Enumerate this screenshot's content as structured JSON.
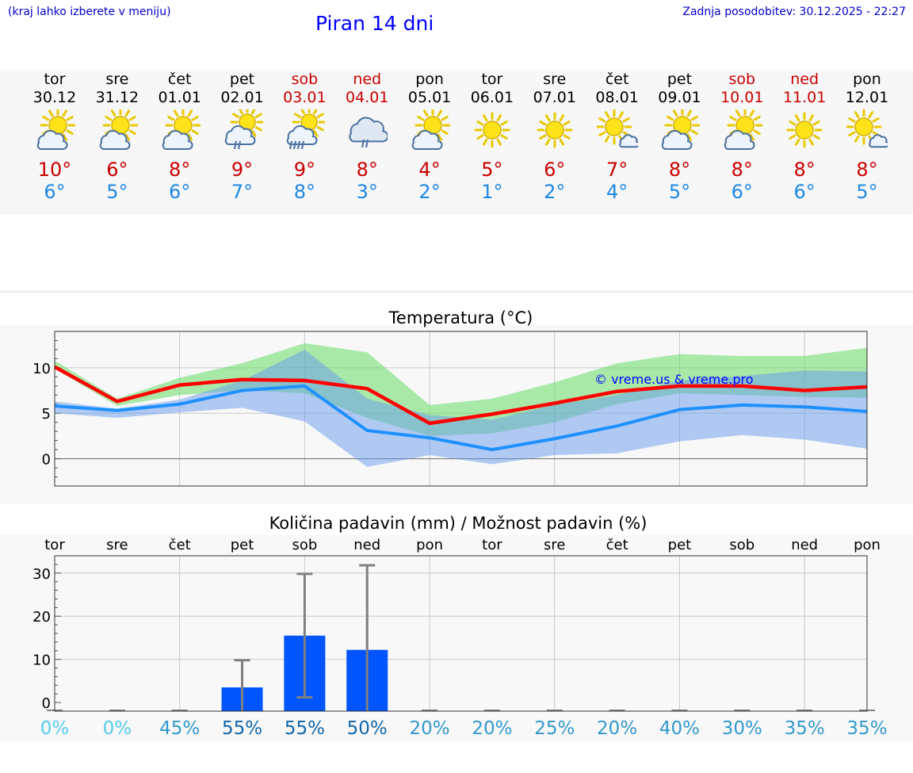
{
  "header": {
    "note": "(kraj lahko izberete v meniju)",
    "title": "Piran 14 dni",
    "updated": "Zadnja posodobitev: 30.12.2025 - 22:27"
  },
  "days": [
    {
      "name": "tor",
      "date": "30.12",
      "icon": "sun-cloud-icon",
      "max": "10°",
      "min": "6°",
      "weekend": false
    },
    {
      "name": "sre",
      "date": "31.12",
      "icon": "sun-cloud-icon",
      "max": "6°",
      "min": "5°",
      "weekend": false
    },
    {
      "name": "čet",
      "date": "01.01",
      "icon": "sun-cloud-icon",
      "max": "8°",
      "min": "6°",
      "weekend": false
    },
    {
      "name": "pet",
      "date": "02.01",
      "icon": "sun-cloud-rain-icon",
      "max": "9°",
      "min": "7°",
      "weekend": false
    },
    {
      "name": "sob",
      "date": "03.01",
      "icon": "sun-cloud-heavy-rain-icon",
      "max": "9°",
      "min": "8°",
      "weekend": true
    },
    {
      "name": "ned",
      "date": "04.01",
      "icon": "cloud-rain-icon",
      "max": "8°",
      "min": "3°",
      "weekend": true
    },
    {
      "name": "pon",
      "date": "05.01",
      "icon": "sun-cloud-icon",
      "max": "4°",
      "min": "2°",
      "weekend": false
    },
    {
      "name": "tor",
      "date": "06.01",
      "icon": "sun-icon",
      "max": "5°",
      "min": "1°",
      "weekend": false
    },
    {
      "name": "sre",
      "date": "07.01",
      "icon": "sun-icon",
      "max": "6°",
      "min": "2°",
      "weekend": false
    },
    {
      "name": "čet",
      "date": "08.01",
      "icon": "sun-small-cloud-icon",
      "max": "7°",
      "min": "4°",
      "weekend": false
    },
    {
      "name": "pet",
      "date": "09.01",
      "icon": "sun-cloud-icon",
      "max": "8°",
      "min": "5°",
      "weekend": false
    },
    {
      "name": "sob",
      "date": "10.01",
      "icon": "sun-cloud-icon",
      "max": "8°",
      "min": "6°",
      "weekend": true
    },
    {
      "name": "ned",
      "date": "11.01",
      "icon": "sun-icon",
      "max": "8°",
      "min": "6°",
      "weekend": true
    },
    {
      "name": "pon",
      "date": "12.01",
      "icon": "sun-small-cloud-icon",
      "max": "8°",
      "min": "5°",
      "weekend": false
    }
  ],
  "colors": {
    "max_line": "#ff0000",
    "min_line": "#1e90ff",
    "max_band": "#66dd66",
    "min_band": "#6699ee",
    "bar": "#0055ff",
    "errorbar": "#808080",
    "weekend": "#cc0000",
    "prob_low": "#55ccee",
    "prob_mid": "#3399cc",
    "prob_high": "#1166aa"
  },
  "chart_data": [
    {
      "type": "line",
      "title": "Temperatura (°C)",
      "x": [
        0,
        1,
        2,
        3,
        4,
        5,
        6,
        7,
        8,
        9,
        10,
        11,
        12,
        13
      ],
      "ylim": [
        -3,
        14
      ],
      "yticks": [
        0,
        5,
        10
      ],
      "watermark": "© vreme.us & vreme.pro",
      "series": [
        {
          "name": "max",
          "values": [
            10.1,
            6.3,
            8.1,
            8.7,
            8.6,
            7.7,
            3.9,
            4.9,
            6.1,
            7.4,
            8.0,
            8.0,
            7.5,
            7.9
          ]
        },
        {
          "name": "min",
          "values": [
            5.8,
            5.3,
            6.0,
            7.5,
            8.0,
            3.1,
            2.3,
            1.0,
            2.2,
            3.6,
            5.4,
            5.9,
            5.7,
            5.2
          ]
        }
      ],
      "bands": [
        {
          "name": "max_range",
          "upper": [
            10.8,
            6.6,
            8.9,
            10.5,
            12.7,
            11.7,
            5.9,
            6.6,
            8.4,
            10.5,
            11.5,
            11.3,
            11.3,
            12.2
          ],
          "lower": [
            9.9,
            5.8,
            7.0,
            7.5,
            7.2,
            4.5,
            2.5,
            2.8,
            4.0,
            6.0,
            7.2,
            7.0,
            6.8,
            6.7
          ]
        },
        {
          "name": "min_range",
          "upper": [
            6.3,
            5.5,
            6.5,
            8.6,
            12.0,
            6.6,
            4.8,
            4.3,
            5.9,
            7.0,
            8.6,
            9.1,
            9.7,
            9.6
          ],
          "lower": [
            5.0,
            4.5,
            5.1,
            5.6,
            4.1,
            -0.9,
            0.4,
            -0.6,
            0.4,
            0.6,
            1.9,
            2.6,
            2.1,
            1.1
          ]
        }
      ]
    },
    {
      "type": "bar",
      "title": "Količina padavin (mm) / Možnost padavin (%)",
      "categories": [
        "tor",
        "sre",
        "čet",
        "pet",
        "sob",
        "ned",
        "pon",
        "tor",
        "sre",
        "čet",
        "pet",
        "sob",
        "ned",
        "pon"
      ],
      "ylim": [
        -2,
        34
      ],
      "yticks": [
        0,
        10,
        20,
        30
      ],
      "values": [
        0,
        0,
        0,
        3.5,
        15.5,
        12.2,
        0,
        0,
        0,
        0,
        0,
        0,
        0,
        0
      ],
      "error_low": [
        0,
        0,
        0,
        0,
        1.2,
        0,
        0,
        0,
        0,
        0,
        0,
        0,
        0,
        0
      ],
      "error_high": [
        0,
        0,
        0,
        9.8,
        29.8,
        31.8,
        0,
        0,
        0,
        0,
        0,
        0,
        0,
        0
      ],
      "probabilities": [
        "0%",
        "0%",
        "45%",
        "55%",
        "55%",
        "50%",
        "20%",
        "20%",
        "25%",
        "20%",
        "40%",
        "30%",
        "35%",
        "35%"
      ],
      "probability_values": [
        0,
        0,
        45,
        55,
        55,
        50,
        20,
        20,
        25,
        20,
        40,
        30,
        35,
        35
      ]
    }
  ]
}
